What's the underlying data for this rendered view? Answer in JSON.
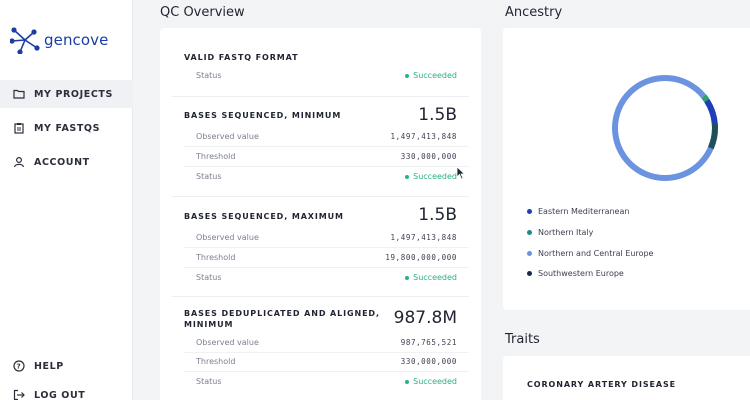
{
  "brand": {
    "name": "gencove",
    "color": "#1a3da8"
  },
  "sidebar": {
    "items": [
      {
        "label": "MY PROJECTS",
        "icon": "folder-icon"
      },
      {
        "label": "MY FASTQS",
        "icon": "clipboard-icon"
      },
      {
        "label": "ACCOUNT",
        "icon": "user-icon"
      }
    ],
    "bottom": [
      {
        "label": "HELP",
        "icon": "help-icon"
      },
      {
        "label": "LOG OUT",
        "icon": "logout-icon"
      }
    ]
  },
  "qc": {
    "title": "QC Overview",
    "status_color": "#2ab37d",
    "checks": [
      {
        "name": "VALID FASTQ FORMAT",
        "status_label": "Status",
        "status": "Succeeded"
      },
      {
        "name": "BASES SEQUENCED, MINIMUM",
        "big": "1.5B",
        "observed_label": "Observed value",
        "observed": "1,497,413,848",
        "threshold_label": "Threshold",
        "threshold": "330,000,000",
        "status_label": "Status",
        "status": "Succeeded"
      },
      {
        "name": "BASES SEQUENCED, MAXIMUM",
        "big": "1.5B",
        "observed_label": "Observed value",
        "observed": "1,497,413,848",
        "threshold_label": "Threshold",
        "threshold": "19,800,000,000",
        "status_label": "Status",
        "status": "Succeeded"
      },
      {
        "name": "BASES DEDUPLICATED AND ALIGNED, MINIMUM",
        "big": "987.8M",
        "observed_label": "Observed value",
        "observed": "987,765,521",
        "threshold_label": "Threshold",
        "threshold": "330,000,000",
        "status_label": "Status",
        "status": "Succeeded"
      }
    ]
  },
  "ancestry": {
    "title": "Ancestry",
    "legend": [
      {
        "label": "Eastern Mediterranean",
        "color": "#1f3fb8"
      },
      {
        "label": "Northern Italy",
        "color": "#1f8a8a"
      },
      {
        "label": "Northern and Central Europe",
        "color": "#6b93e0"
      },
      {
        "label": "Southwestern Europe",
        "color": "#1b2a4a"
      }
    ]
  },
  "traits": {
    "title": "Traits",
    "items": [
      {
        "name": "CORONARY ARTERY DISEASE"
      }
    ]
  }
}
